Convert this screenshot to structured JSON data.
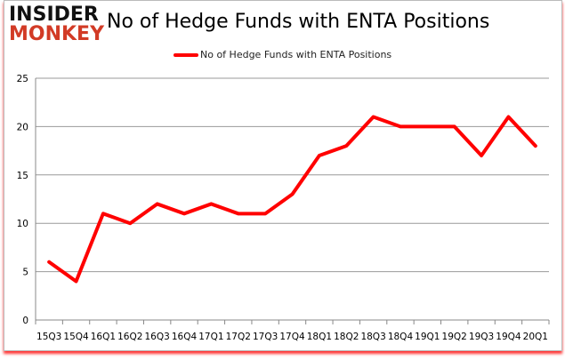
{
  "logo": {
    "line1": "INSIDER",
    "line2": "MONKEY"
  },
  "chart_data": {
    "type": "line",
    "title": "No of Hedge Funds with ENTA Positions",
    "categories": [
      "15Q3",
      "15Q4",
      "16Q1",
      "16Q2",
      "16Q3",
      "16Q4",
      "17Q1",
      "17Q2",
      "17Q3",
      "17Q4",
      "18Q1",
      "18Q2",
      "18Q3",
      "18Q4",
      "19Q1",
      "19Q2",
      "19Q3",
      "19Q4",
      "20Q1"
    ],
    "series": [
      {
        "name": "No of Hedge Funds with ENTA Positions",
        "color": "#ff0000",
        "values": [
          6,
          4,
          11,
          10,
          12,
          11,
          12,
          11,
          11,
          13,
          17,
          18,
          21,
          20,
          20,
          20,
          17,
          21,
          18
        ]
      }
    ],
    "ylim": [
      0,
      25
    ],
    "yticks": [
      0,
      5,
      10,
      15,
      20,
      25
    ],
    "grid": true,
    "legend": "top-center"
  }
}
